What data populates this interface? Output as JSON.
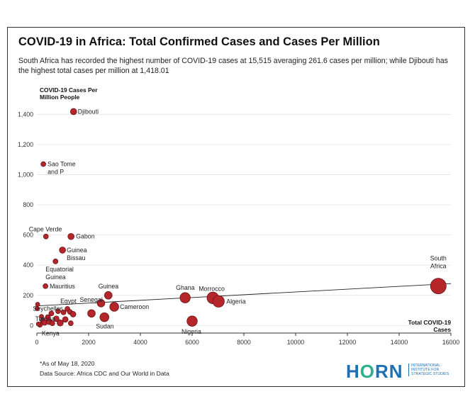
{
  "title": "COVID-19 in Africa: Total Confirmed Cases and Cases Per Million",
  "subtitle": "South Africa has recorded the highest number of COVID-19 cases at 15,515 averaging 261.6 cases per million; while Djibouti has the highest total cases per million at 1,418.01",
  "footnote": "*As of May 18, 2020",
  "source": "Data Source: Africa CDC and Our World in Data",
  "logo": {
    "word_pre": "H",
    "word_o": "O",
    "word_post": "RN",
    "subtext": "INTERNATIONAL INSTITUTE FOR STRATEGIC STUDIES"
  },
  "colors": {
    "point_fill": "#b5262b",
    "point_stroke": "#5a0f12",
    "trend": "#222222",
    "grid": "#e3e3e3"
  },
  "chart_data": {
    "type": "scatter",
    "title": "COVID-19 in Africa: Total Confirmed Cases and Cases Per Million",
    "xlabel": "Total COVID-19 Cases",
    "ylabel": "COVID-19 Cases Per Million People",
    "xlim": [
      0,
      16000
    ],
    "ylim": [
      -50,
      1500
    ],
    "x_ticks": [
      0,
      2000,
      4000,
      6000,
      8000,
      10000,
      12000,
      14000,
      16000
    ],
    "x_tick_labels": [
      "0",
      "2000",
      "4000",
      "6000",
      "8000",
      "10000",
      "12000",
      "14000",
      "16000"
    ],
    "y_ticks": [
      0,
      200,
      400,
      600,
      800,
      1000,
      1200,
      1400
    ],
    "y_tick_labels": [
      "0",
      "200",
      "400",
      "600",
      "800",
      "1,000",
      "1,200",
      "1,400"
    ],
    "grid": "horizontal",
    "trendline": {
      "x": [
        0,
        16000
      ],
      "y": [
        130,
        278
      ]
    },
    "points": [
      {
        "label": "Djibouti",
        "x": 1418,
        "y": 1418,
        "size": 3
      },
      {
        "label": "Sao Tome and P",
        "x": 251,
        "y": 1070,
        "size": 2
      },
      {
        "label": "Cape Verde",
        "x": 350,
        "y": 590,
        "size": 2
      },
      {
        "label": "Gabon",
        "x": 1320,
        "y": 590,
        "size": 3
      },
      {
        "label": "Guinea Bissau",
        "x": 990,
        "y": 500,
        "size": 3
      },
      {
        "label": "Equatorial Guinea",
        "x": 720,
        "y": 425,
        "size": 2
      },
      {
        "label": "Mauritius",
        "x": 332,
        "y": 261,
        "size": 2
      },
      {
        "label": "Guinea",
        "x": 2760,
        "y": 200,
        "size": 4
      },
      {
        "label": "Ghana",
        "x": 5730,
        "y": 184,
        "size": 6
      },
      {
        "label": "Morrocco",
        "x": 6800,
        "y": 183,
        "size": 7
      },
      {
        "label": "Algeria",
        "x": 7020,
        "y": 160,
        "size": 7
      },
      {
        "label": "South Africa",
        "x": 15515,
        "y": 261.6,
        "size": 10
      },
      {
        "label": "Egypt",
        "x": 1180,
        "y": 110,
        "size": 2
      },
      {
        "label": "Senegal",
        "x": 2480,
        "y": 148,
        "size": 4
      },
      {
        "label": "Cameroon",
        "x": 2990,
        "y": 124,
        "size": 5
      },
      {
        "label": "Seychelles",
        "x": 11,
        "y": 112,
        "size": 1.5
      },
      {
        "label": "Tunisia",
        "x": 1030,
        "y": 87,
        "size": 2
      },
      {
        "label": "Sudan",
        "x": 2610,
        "y": 55,
        "size": 5
      },
      {
        "label": "Nigeria",
        "x": 6000,
        "y": 29,
        "size": 6
      },
      {
        "label": "Kenya",
        "x": 900,
        "y": 17,
        "size": 3
      },
      {
        "label": "",
        "x": 30,
        "y": 140,
        "size": 1.5
      },
      {
        "label": "",
        "x": 120,
        "y": 5,
        "size": 2
      },
      {
        "label": "",
        "x": 220,
        "y": 35,
        "size": 2
      },
      {
        "label": "",
        "x": 300,
        "y": 20,
        "size": 2.5
      },
      {
        "label": "",
        "x": 420,
        "y": 55,
        "size": 2
      },
      {
        "label": "",
        "x": 480,
        "y": 25,
        "size": 2.5
      },
      {
        "label": "",
        "x": 560,
        "y": 80,
        "size": 2
      },
      {
        "label": "",
        "x": 600,
        "y": 15,
        "size": 2
      },
      {
        "label": "",
        "x": 750,
        "y": 45,
        "size": 2.5
      },
      {
        "label": "",
        "x": 820,
        "y": 95,
        "size": 2
      },
      {
        "label": "",
        "x": 1100,
        "y": 40,
        "size": 2.5
      },
      {
        "label": "",
        "x": 1280,
        "y": 90,
        "size": 2
      },
      {
        "label": "",
        "x": 1400,
        "y": 75,
        "size": 2.5
      },
      {
        "label": "",
        "x": 1310,
        "y": 15,
        "size": 2
      },
      {
        "label": "",
        "x": 2110,
        "y": 80,
        "size": 4
      },
      {
        "label": "",
        "x": 60,
        "y": 10,
        "size": 1.5
      },
      {
        "label": "",
        "x": 180,
        "y": 60,
        "size": 1.5
      }
    ]
  }
}
